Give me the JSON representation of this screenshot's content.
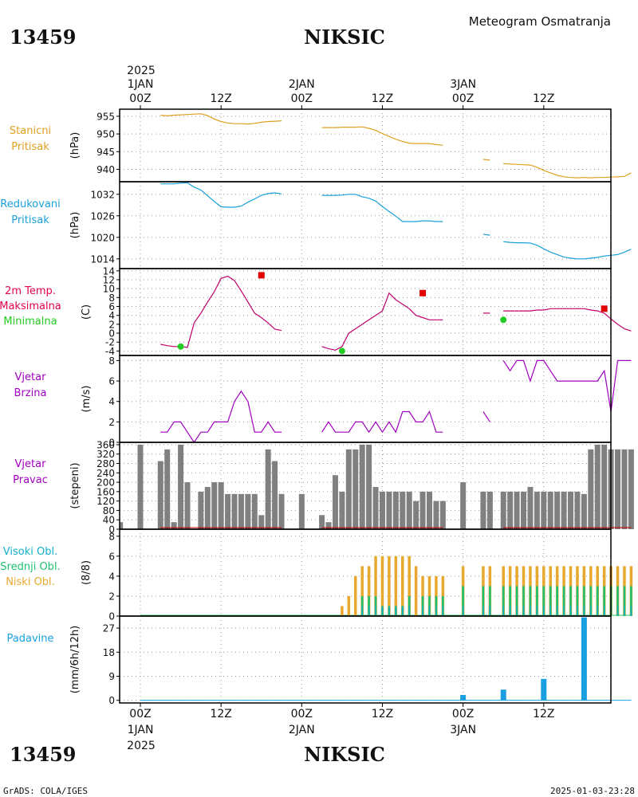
{
  "header": {
    "station_id": "13459",
    "station_name": "NIKSIC",
    "meteogram_title": "Meteogram Osmatranja"
  },
  "footer": {
    "station_id": "13459",
    "station_name": "NIKSIC",
    "credit": "GrADS: COLA/IGES",
    "timestamp": "2025-01-03-23:28"
  },
  "time_axis": {
    "top_year": "2025",
    "bottom_year": "2025",
    "date_labels": [
      "1JAN",
      "2JAN",
      "3JAN"
    ],
    "tick_labels": [
      "00Z",
      "12Z",
      "00Z",
      "12Z",
      "00Z",
      "12Z"
    ],
    "tick_hours": [
      0,
      12,
      24,
      36,
      48,
      60
    ]
  },
  "colors": {
    "pressure": "#e0a020",
    "reduced_pressure": "#1aa0d8",
    "temp_label": "#e0004a",
    "temp_line": "#c0006a",
    "tmax": "#e00000",
    "tmin": "#22cc22",
    "wind": "#a000c0",
    "wind_dir_bar": "#808080",
    "wind_dir_base": "#c00000",
    "cloud_high": "#10b0c8",
    "cloud_mid": "#20c070",
    "cloud_low": "#e8a830",
    "precip": "#1aa0e0"
  },
  "chart_data": [
    {
      "type": "line",
      "panel_labels": [
        "Stanicni",
        "Pritisak"
      ],
      "ylabel": "(hPa)",
      "yticks": [
        940,
        945,
        950,
        955
      ],
      "ylim": [
        936.5,
        957
      ],
      "x_hours": [
        3,
        6,
        9,
        12,
        15,
        18,
        21,
        27,
        30,
        33,
        36,
        39,
        42,
        45,
        48,
        51,
        54,
        57,
        60,
        63,
        66,
        69,
        72
      ],
      "segments": [
        {
          "x": [
            3,
            4,
            5,
            6,
            7,
            8,
            9,
            10,
            11,
            12,
            13,
            14,
            15,
            16,
            17,
            18,
            19,
            20,
            21
          ],
          "y": [
            955.3,
            955.1,
            955.3,
            955.4,
            955.5,
            955.6,
            955.7,
            955.2,
            954.2,
            953.5,
            953.1,
            952.9,
            952.9,
            952.8,
            953.0,
            953.3,
            953.5,
            953.6,
            953.7
          ]
        },
        {
          "x": [
            27,
            28,
            29,
            30,
            31,
            32,
            33,
            34,
            35,
            36,
            37,
            38,
            39,
            40,
            41,
            42,
            43,
            44,
            45
          ],
          "y": [
            951.8,
            951.8,
            951.8,
            951.9,
            951.9,
            951.9,
            952.0,
            951.6,
            951.0,
            950.1,
            949.3,
            948.5,
            947.9,
            947.4,
            947.3,
            947.3,
            947.3,
            947.0,
            946.8
          ]
        },
        {
          "x": [
            51,
            52
          ],
          "y": [
            942.8,
            942.6
          ]
        },
        {
          "x": [
            54,
            55,
            56,
            57,
            58,
            59,
            60,
            61,
            62,
            63,
            64,
            65,
            66,
            67,
            68,
            69,
            70,
            71,
            72,
            73
          ],
          "y": [
            941.6,
            941.5,
            941.4,
            941.3,
            941.2,
            940.6,
            939.7,
            939.0,
            938.3,
            937.9,
            937.7,
            937.6,
            937.7,
            937.6,
            937.7,
            937.7,
            937.8,
            937.9,
            938.0,
            939.0
          ]
        }
      ]
    },
    {
      "type": "line",
      "panel_labels": [
        "Redukovani",
        "Pritisak"
      ],
      "ylabel": "(hPa)",
      "yticks": [
        1014,
        1020,
        1026,
        1032
      ],
      "ylim": [
        1011.3,
        1035.5
      ],
      "segments": [
        {
          "x": [
            3,
            4,
            5,
            6,
            7,
            8,
            9,
            10,
            11,
            12,
            13,
            14,
            15,
            16,
            17,
            18,
            19,
            20,
            21
          ],
          "y": [
            1034.9,
            1034.9,
            1034.9,
            1035.1,
            1035.2,
            1034.0,
            1033.2,
            1031.6,
            1030.0,
            1028.5,
            1028.4,
            1028.4,
            1028.7,
            1029.8,
            1030.7,
            1031.7,
            1032.2,
            1032.4,
            1032.1
          ]
        },
        {
          "x": [
            27,
            28,
            29,
            30,
            31,
            32,
            33,
            34,
            35,
            36,
            37,
            38,
            39,
            40,
            41,
            42,
            43,
            44,
            45
          ],
          "y": [
            1031.7,
            1031.7,
            1031.7,
            1031.8,
            1032.0,
            1032.0,
            1031.3,
            1030.9,
            1030.1,
            1028.6,
            1027.2,
            1025.9,
            1024.4,
            1024.4,
            1024.4,
            1024.6,
            1024.6,
            1024.4,
            1024.4
          ]
        },
        {
          "x": [
            51,
            52
          ],
          "y": [
            1020.9,
            1020.6
          ]
        },
        {
          "x": [
            54,
            55,
            56,
            57,
            58,
            59,
            60,
            61,
            62,
            63,
            64,
            65,
            66,
            67,
            68,
            69,
            70,
            71,
            72,
            73
          ],
          "y": [
            1018.8,
            1018.6,
            1018.5,
            1018.5,
            1018.4,
            1017.8,
            1016.8,
            1015.9,
            1015.2,
            1014.5,
            1014.2,
            1014.0,
            1014.0,
            1014.2,
            1014.4,
            1014.8,
            1015.0,
            1015.2,
            1015.9,
            1016.7
          ]
        }
      ]
    },
    {
      "type": "line",
      "panel_labels": [
        "2m Temp.",
        "Maksimalna",
        "Minimalna"
      ],
      "ylabel": "(C)",
      "yticks": [
        -4,
        -2,
        0,
        2,
        4,
        6,
        8,
        10,
        12,
        14
      ],
      "ylim": [
        -5,
        14.5
      ],
      "segments": [
        {
          "x": [
            3,
            4,
            5,
            6,
            7,
            8,
            9,
            10,
            11,
            12,
            13,
            14,
            15,
            16,
            17,
            18,
            19,
            20,
            21
          ],
          "y": [
            -2.5,
            -2.8,
            -3.0,
            -3.0,
            -3.2,
            2.3,
            4.5,
            7.0,
            9.3,
            12.3,
            12.8,
            11.8,
            9.5,
            7.0,
            4.5,
            3.5,
            2.3,
            0.9,
            0.6
          ]
        },
        {
          "x": [
            27,
            28,
            29,
            30,
            31,
            32,
            33,
            34,
            35,
            36,
            37,
            38,
            39,
            40,
            41,
            42,
            43,
            44,
            45
          ],
          "y": [
            -3.0,
            -3.5,
            -3.8,
            -3.0,
            0.0,
            1.0,
            2.0,
            3.0,
            4.0,
            5.0,
            9.0,
            7.5,
            6.5,
            5.5,
            4.0,
            3.5,
            3.0,
            3.0,
            3.0
          ]
        },
        {
          "x": [
            51,
            52
          ],
          "y": [
            4.5,
            4.5
          ]
        },
        {
          "x": [
            54,
            55,
            56,
            57,
            58,
            59,
            60,
            61,
            62,
            63,
            64,
            65,
            66,
            67,
            68,
            69,
            70,
            71,
            72,
            73
          ],
          "y": [
            5.0,
            5.0,
            5.0,
            5.0,
            5.0,
            5.2,
            5.2,
            5.5,
            5.5,
            5.5,
            5.5,
            5.5,
            5.5,
            5.2,
            5.0,
            4.5,
            3.2,
            2.0,
            1.0,
            0.5
          ]
        }
      ],
      "tmax": [
        {
          "x": 18,
          "y": 13.0
        },
        {
          "x": 42,
          "y": 9.0
        },
        {
          "x": 69,
          "y": 5.5
        }
      ],
      "tmin": [
        {
          "x": 6,
          "y": -3.0
        },
        {
          "x": 30,
          "y": -4.0
        },
        {
          "x": 54,
          "y": 3.0
        }
      ]
    },
    {
      "type": "line",
      "panel_labels": [
        "Vjetar",
        "Brzina"
      ],
      "ylabel": "(m/s)",
      "yticks": [
        0,
        2,
        4,
        6,
        8
      ],
      "ylim": [
        0,
        8.5
      ],
      "segments": [
        {
          "x": [
            3,
            4,
            5,
            6,
            7,
            8,
            9,
            10,
            11,
            12,
            13,
            14,
            15,
            16,
            17,
            18,
            19,
            20,
            21
          ],
          "y": [
            1,
            1,
            2,
            2,
            1,
            0,
            1,
            1,
            2,
            2,
            2,
            4,
            5,
            4,
            1,
            1,
            2,
            1,
            1
          ]
        },
        {
          "x": [
            27,
            28,
            29,
            30,
            31,
            32,
            33,
            34,
            35,
            36,
            37,
            38,
            39,
            40,
            41,
            42,
            43,
            44,
            45
          ],
          "y": [
            1,
            2,
            1,
            1,
            1,
            2,
            2,
            1,
            2,
            1,
            2,
            1,
            3,
            3,
            2,
            2,
            3,
            1,
            1
          ]
        },
        {
          "x": [
            51,
            52
          ],
          "y": [
            3,
            2
          ]
        },
        {
          "x": [
            54,
            55,
            56,
            57,
            58,
            59,
            60,
            61,
            62,
            63,
            64,
            65,
            66,
            67,
            68,
            69,
            70,
            71,
            72,
            73
          ],
          "y": [
            8,
            7,
            8,
            8,
            6,
            8,
            8,
            7,
            6,
            6,
            6,
            6,
            6,
            6,
            6,
            7,
            3,
            8,
            8,
            8
          ]
        }
      ]
    },
    {
      "type": "bar",
      "panel_labels": [
        "Vjetar",
        "Pravac"
      ],
      "ylabel": "(stepeni)",
      "yticks": [
        0,
        40,
        80,
        120,
        160,
        200,
        240,
        280,
        320,
        360
      ],
      "ylim": [
        0,
        370
      ],
      "x": [
        -3,
        0,
        3,
        4,
        5,
        6,
        7,
        8,
        9,
        10,
        11,
        12,
        13,
        14,
        15,
        16,
        17,
        18,
        19,
        20,
        21,
        21.5,
        24,
        27,
        28,
        29,
        30,
        31,
        32,
        33,
        34,
        35,
        36,
        37,
        38,
        39,
        40,
        41,
        42,
        43,
        44,
        45,
        48,
        51,
        52,
        54,
        55,
        56,
        57,
        58,
        59,
        60,
        61,
        62,
        63,
        64,
        65,
        66,
        67,
        68,
        69,
        70,
        71,
        72,
        73
      ],
      "values": [
        30,
        360,
        290,
        340,
        30,
        360,
        200,
        0,
        160,
        180,
        200,
        200,
        150,
        150,
        150,
        150,
        150,
        60,
        340,
        290,
        150,
        0,
        150,
        60,
        30,
        230,
        160,
        340,
        340,
        360,
        360,
        180,
        160,
        160,
        160,
        160,
        160,
        120,
        160,
        160,
        120,
        120,
        200,
        160,
        160,
        160,
        160,
        160,
        160,
        180,
        160,
        160,
        160,
        160,
        160,
        160,
        160,
        150,
        340,
        360,
        360,
        340,
        340,
        340,
        340
      ]
    },
    {
      "type": "bar",
      "panel_labels": [
        "Visoki Obl.",
        "Srednji Obl.",
        "Niski Obl."
      ],
      "ylabel": "(8/8)",
      "yticks": [
        0,
        2,
        4,
        6,
        8
      ],
      "ylim": [
        0,
        8.7
      ],
      "x": [
        30,
        31,
        32,
        33,
        34,
        35,
        36,
        37,
        38,
        39,
        40,
        41,
        42,
        43,
        44,
        45,
        48,
        51,
        52,
        54,
        55,
        56,
        57,
        58,
        59,
        60,
        61,
        62,
        63,
        64,
        65,
        66,
        67,
        68,
        69,
        70,
        71,
        72,
        73
      ],
      "series": [
        {
          "name": "Niski Obl.",
          "values": [
            1,
            2,
            4,
            5,
            5,
            6,
            6,
            6,
            6,
            6,
            6,
            5,
            4,
            4,
            4,
            4,
            5,
            5,
            5,
            5,
            5,
            5,
            5,
            5,
            5,
            5,
            5,
            5,
            5,
            5,
            5,
            5,
            5,
            5,
            5,
            5,
            5,
            5,
            5
          ]
        },
        {
          "name": "Srednji Obl.",
          "values": [
            0,
            0,
            0,
            2,
            2,
            2,
            1,
            1,
            1,
            1,
            2,
            0,
            2,
            2,
            2,
            2,
            3,
            3,
            3,
            3,
            3,
            3,
            3,
            3,
            3,
            3,
            3,
            3,
            3,
            3,
            3,
            3,
            3,
            3,
            3,
            3,
            3,
            3,
            3
          ]
        },
        {
          "name": "Visoki Obl.",
          "values": [
            0,
            0,
            0,
            1,
            1,
            1,
            1,
            1,
            1,
            1,
            1,
            0,
            1,
            1,
            1,
            1,
            1,
            1,
            1,
            1,
            1,
            1,
            1,
            1,
            1,
            1,
            1,
            1,
            1,
            1,
            1,
            1,
            1,
            1,
            1,
            1,
            1,
            1,
            1
          ]
        }
      ]
    },
    {
      "type": "bar",
      "panel_labels": [
        "Padavine"
      ],
      "ylabel": "(mm/6h/12h)",
      "yticks": [
        0,
        9,
        18,
        27
      ],
      "ylim": [
        -1,
        31.5
      ],
      "x": [
        48,
        54,
        60,
        66
      ],
      "values": [
        2,
        4,
        8,
        31
      ]
    }
  ]
}
